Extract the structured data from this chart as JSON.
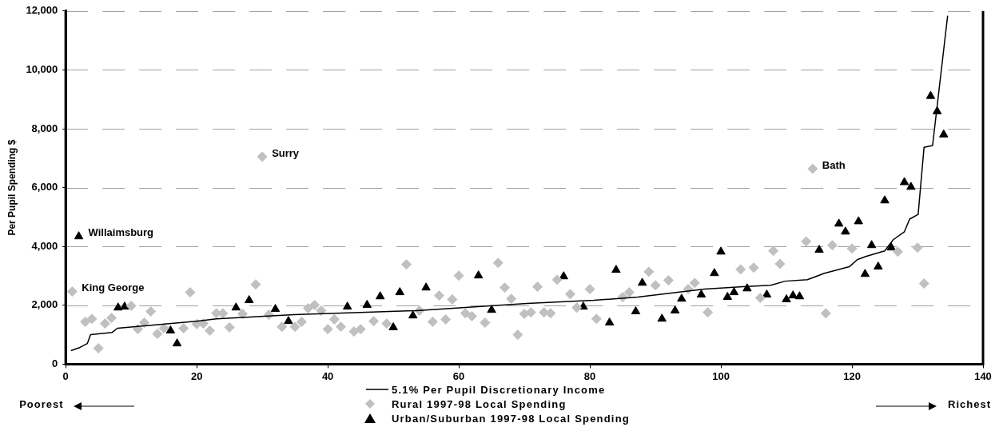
{
  "chart_data": {
    "type": "scatter",
    "ylabel": "Per Pupil Spending $",
    "xlim": [
      0,
      140
    ],
    "xticks": [
      0,
      20,
      40,
      60,
      80,
      100,
      120,
      140
    ],
    "ylim": [
      0,
      12000
    ],
    "yticks": [
      {
        "value": 0,
        "label": "0"
      },
      {
        "value": 2000,
        "label": "2,000"
      },
      {
        "value": 4000,
        "label": "4,000"
      },
      {
        "value": 6000,
        "label": "6,000"
      },
      {
        "value": 8000,
        "label": "8,000"
      },
      {
        "value": 10000,
        "label": "10,000"
      },
      {
        "value": 12000,
        "label": "12,000"
      }
    ],
    "grid": "y",
    "legend": "bottom",
    "series": [
      {
        "name": "5.1% Per Pupil Discretionary Income",
        "type": "line",
        "color": "#000000",
        "marker": "none",
        "line_style": "solid",
        "x": [
          0.8,
          2.2,
          3.3,
          3.8,
          7.1,
          7.9,
          10.3,
          19.9,
          23.0,
          34.8,
          53.5,
          70.4,
          80.6,
          87.3,
          97.5,
          103.4,
          107.6,
          109.8,
          113.2,
          115.8,
          119.6,
          120.8,
          122.1,
          125.0,
          126.3,
          128.0,
          128.8,
          130.1,
          131.0,
          132.3,
          134.6
        ],
        "values": [
          460,
          570,
          700,
          1000,
          1080,
          1220,
          1270,
          1460,
          1540,
          1680,
          1820,
          2060,
          2170,
          2280,
          2550,
          2630,
          2680,
          2820,
          2870,
          3090,
          3310,
          3550,
          3660,
          3850,
          4230,
          4500,
          4930,
          5090,
          7370,
          7430,
          11840
        ]
      },
      {
        "name": "Rural 1997-98 Local Spending",
        "color": "#c0c0c0",
        "marker": "diamond",
        "x": [
          1,
          3,
          4,
          5,
          6,
          7,
          10,
          11,
          12,
          13,
          14,
          15,
          18,
          19,
          20,
          21,
          22,
          23,
          24,
          25,
          27,
          29,
          30,
          31,
          33,
          35,
          36,
          37,
          38,
          39,
          40,
          41,
          42,
          44,
          45,
          47,
          49,
          52,
          54,
          56,
          57,
          58,
          59,
          60,
          61,
          62,
          64,
          66,
          67,
          68,
          69,
          70,
          71,
          72,
          73,
          74,
          75,
          77,
          78,
          80,
          81,
          85,
          86,
          89,
          90,
          92,
          95,
          96,
          98,
          103,
          105,
          106,
          108,
          109,
          113,
          114,
          116,
          117,
          120,
          127,
          130,
          131
        ],
        "values": [
          2470,
          1440,
          1540,
          540,
          1380,
          1570,
          1980,
          1190,
          1410,
          1790,
          1030,
          1220,
          1220,
          2440,
          1360,
          1380,
          1140,
          1730,
          1730,
          1250,
          1710,
          2710,
          7050,
          1680,
          1270,
          1270,
          1440,
          1900,
          2010,
          1820,
          1190,
          1520,
          1270,
          1110,
          1190,
          1460,
          1380,
          3390,
          1820,
          1440,
          2330,
          1520,
          2200,
          3010,
          1730,
          1630,
          1410,
          3440,
          2600,
          2220,
          1000,
          1710,
          1760,
          2630,
          1760,
          1730,
          2870,
          2380,
          1920,
          2550,
          1540,
          2280,
          2440,
          3140,
          2680,
          2850,
          2550,
          2760,
          1760,
          3220,
          3280,
          2250,
          3850,
          3410,
          4170,
          6640,
          1730,
          4040,
          3930,
          3820,
          3960,
          2740
        ]
      },
      {
        "name": "Urban/Suburban 1997-98 Local Spending",
        "color": "#000000",
        "marker": "triangle",
        "x": [
          2,
          8,
          9,
          16,
          17,
          26,
          28,
          32,
          34,
          43,
          46,
          48,
          50,
          51,
          53,
          55,
          63,
          65,
          76,
          79,
          83,
          84,
          87,
          88,
          91,
          93,
          94,
          97,
          99,
          100,
          101,
          102,
          104,
          107,
          110,
          111,
          112,
          115,
          118,
          119,
          121,
          122,
          123,
          124,
          125,
          126,
          128,
          129,
          132,
          133,
          134
        ],
        "values": [
          4340,
          1920,
          1950,
          1140,
          700,
          1920,
          2170,
          1870,
          1460,
          1950,
          2010,
          2300,
          1250,
          2440,
          1650,
          2600,
          3010,
          1840,
          2980,
          1950,
          1410,
          3200,
          1790,
          2760,
          1540,
          1820,
          2220,
          2360,
          3090,
          3820,
          2280,
          2440,
          2570,
          2360,
          2200,
          2330,
          2300,
          3880,
          4770,
          4500,
          4850,
          3060,
          4040,
          3310,
          5560,
          3960,
          6180,
          6020,
          9110,
          8590,
          7800
        ]
      }
    ],
    "annotations": [
      {
        "text": "Willaimsburg",
        "x": 2,
        "y": 4340
      },
      {
        "text": "King George",
        "x": 1,
        "y": 2470
      },
      {
        "text": "Surry",
        "x": 30,
        "y": 7050
      },
      {
        "text": "Bath",
        "x": 114,
        "y": 6640
      },
      "Poorest",
      "Richest"
    ]
  }
}
